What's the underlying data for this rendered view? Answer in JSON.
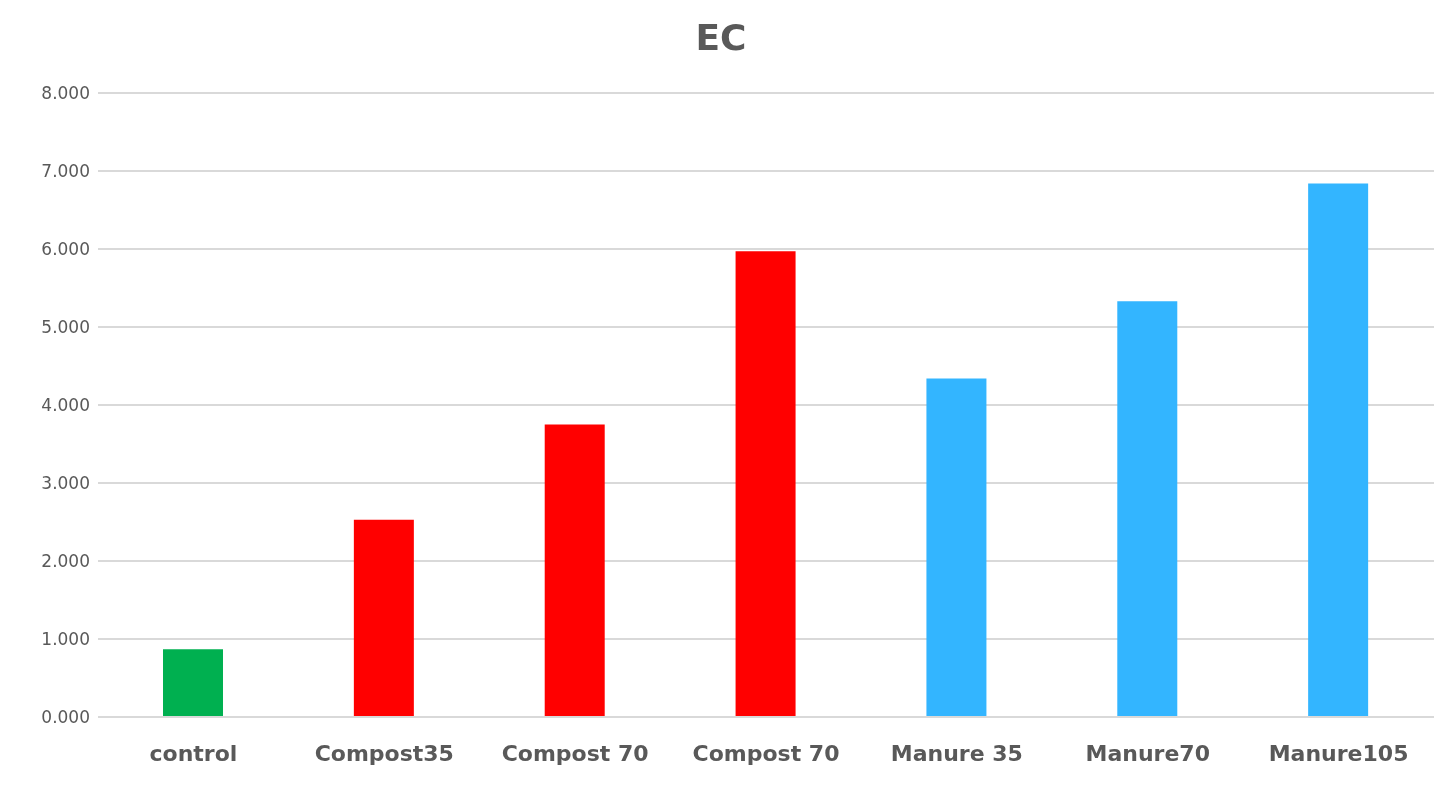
{
  "chart_data": {
    "type": "bar",
    "title": "EC",
    "categories": [
      "control",
      "Compost35",
      "Compost 70",
      "Compost 70",
      "Manure 35",
      "Manure70",
      "Manure105"
    ],
    "values": [
      0.87,
      2.53,
      3.75,
      5.97,
      4.34,
      5.33,
      6.84
    ],
    "colors": [
      "#00b050",
      "#ff0000",
      "#ff0000",
      "#ff0000",
      "#33b5ff",
      "#33b5ff",
      "#33b5ff"
    ],
    "ylim": [
      0,
      8
    ],
    "yticks": [
      {
        "value": 0,
        "label": "0.000"
      },
      {
        "value": 1,
        "label": "1.000"
      },
      {
        "value": 2,
        "label": "2.000"
      },
      {
        "value": 3,
        "label": "3.000"
      },
      {
        "value": 4,
        "label": "4.000"
      },
      {
        "value": 5,
        "label": "5.000"
      },
      {
        "value": 6,
        "label": "6.000"
      },
      {
        "value": 7,
        "label": "7.000"
      },
      {
        "value": 8,
        "label": "8.000"
      }
    ],
    "grid": "y",
    "legend": false
  }
}
